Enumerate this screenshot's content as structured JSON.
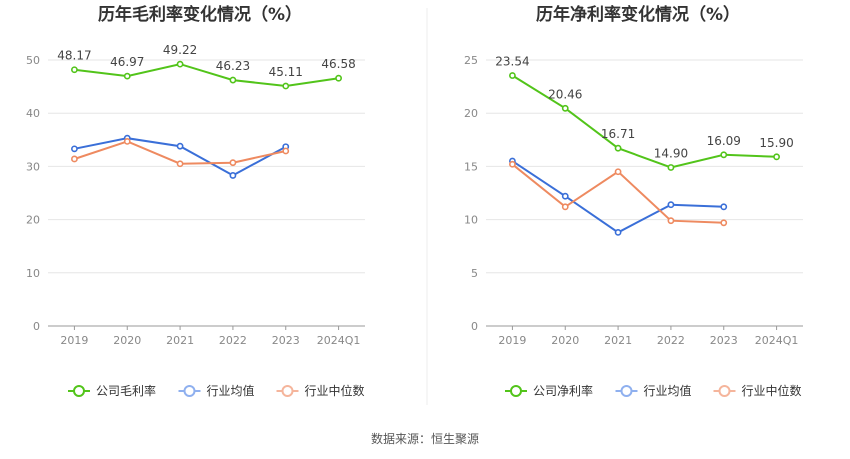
{
  "source": "数据来源：恒生聚源",
  "legend": [
    "公司毛利率",
    "行业均值",
    "行业中位数"
  ],
  "chart_data": [
    {
      "type": "line",
      "title": "历年毛利率变化情况（%）",
      "categories": [
        "2019",
        "2020",
        "2021",
        "2022",
        "2023",
        "2024Q1"
      ],
      "ylim": [
        0,
        50
      ],
      "yticks": [
        "0",
        "10",
        "20",
        "30",
        "40",
        "50"
      ],
      "grid": true,
      "legend_position": "bottom",
      "series": [
        {
          "name": "公司毛利率",
          "color": "#52c41a",
          "values": [
            48.17,
            46.97,
            49.22,
            46.23,
            45.11,
            46.58
          ],
          "labels": [
            "48.17",
            "46.97",
            "49.22",
            "46.23",
            "45.11",
            "46.58"
          ]
        },
        {
          "name": "行业均值",
          "color": "#3a6fd8",
          "values": [
            33.3,
            35.3,
            33.8,
            28.3,
            33.7,
            null
          ]
        },
        {
          "name": "行业中位数",
          "color": "#ee8a60",
          "values": [
            31.4,
            34.7,
            30.5,
            30.7,
            32.9,
            null
          ]
        }
      ]
    },
    {
      "type": "line",
      "title": "历年净利率变化情况（%）",
      "categories": [
        "2019",
        "2020",
        "2021",
        "2022",
        "2023",
        "2024Q1"
      ],
      "ylim": [
        0,
        25
      ],
      "yticks": [
        "0",
        "5",
        "10",
        "15",
        "20",
        "25"
      ],
      "grid": true,
      "legend_position": "bottom",
      "series": [
        {
          "name": "公司净利率",
          "color": "#52c41a",
          "values": [
            23.54,
            20.46,
            16.71,
            14.9,
            16.09,
            15.9
          ],
          "labels": [
            "23.54",
            "20.46",
            "16.71",
            "14.90",
            "16.09",
            "15.90"
          ]
        },
        {
          "name": "行业均值",
          "color": "#3a6fd8",
          "values": [
            15.5,
            12.2,
            8.8,
            11.4,
            11.2,
            null
          ]
        },
        {
          "name": "行业中位数",
          "color": "#ee8a60",
          "values": [
            15.2,
            11.2,
            14.5,
            9.9,
            9.7,
            null
          ]
        }
      ]
    }
  ]
}
